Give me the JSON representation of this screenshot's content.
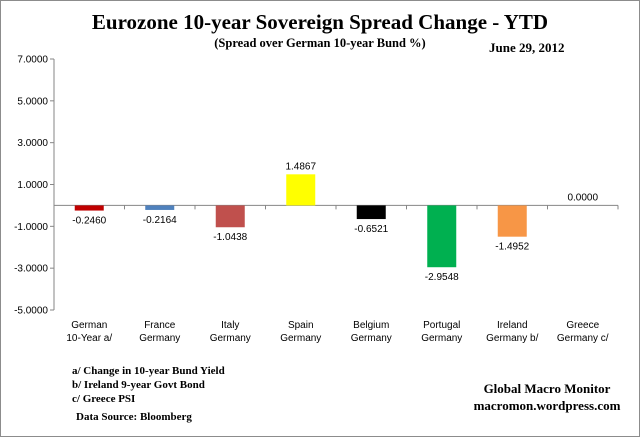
{
  "title": "Eurozone 10-year Sovereign Spread Change - YTD",
  "subtitle": "(Spread over German 10-year Bund %)",
  "date": "June 29,  2012",
  "notes": [
    "a/ Change in 10-year Bund Yield",
    "b/ Ireland 9-year Govt Bond",
    "c/ Greece PSI"
  ],
  "source": "Data Source:  Bloomberg",
  "brand": {
    "name": "Global Macro Monitor",
    "url": "macromon.wordpress.com"
  },
  "chart_data": {
    "type": "bar",
    "title": "Eurozone 10-year Sovereign Spread Change - YTD",
    "subtitle": "(Spread over German 10-year Bund %)",
    "categories": [
      [
        "German",
        "10-Year a/"
      ],
      [
        "France",
        "Germany"
      ],
      [
        "Italy",
        "Germany"
      ],
      [
        "Spain",
        "Germany"
      ],
      [
        "Belgium",
        "Germany"
      ],
      [
        "Portugal",
        "Germany"
      ],
      [
        "Ireland",
        "Germany b/"
      ],
      [
        "Greece",
        "Germany c/"
      ]
    ],
    "values": [
      -0.246,
      -0.2164,
      -1.0438,
      1.4867,
      -0.6521,
      -2.9548,
      -1.4952,
      0.0
    ],
    "value_labels": [
      "-0.2460",
      "-0.2164",
      "-1.0438",
      "1.4867",
      "-0.6521",
      "-2.9548",
      "-1.4952",
      "0.0000"
    ],
    "colors": [
      "#c00000",
      "#4f81bd",
      "#c0504d",
      "#ffff00",
      "#000000",
      "#00b050",
      "#f79646",
      "#ffffff"
    ],
    "ylim": [
      -5,
      7
    ],
    "yticks": [
      7,
      5,
      3,
      1,
      -1,
      -3,
      -5
    ],
    "ytick_labels": [
      "7.0000",
      "5.0000",
      "3.0000",
      "1.0000",
      "-1.0000",
      "-3.0000",
      "-5.0000"
    ],
    "xlabel": "",
    "ylabel": "",
    "grid": false,
    "legend": "none"
  }
}
